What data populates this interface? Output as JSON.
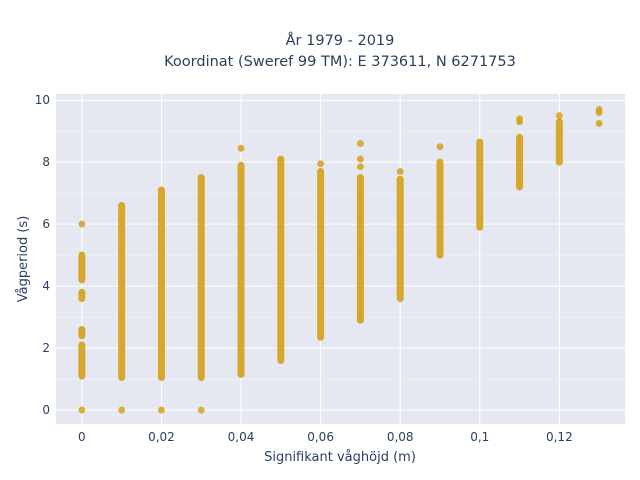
{
  "chart_data": {
    "type": "scatter",
    "title_line1": "År 1979 - 2019",
    "title_line2": "Koordinat (Sweref 99 TM): E 373611, N 6271753",
    "xlabel": "Signifikant våghöjd (m)",
    "ylabel": "Vågperiod (s)",
    "xlim": [
      -0.0065,
      0.1365
    ],
    "ylim": [
      -0.45,
      10.2
    ],
    "grid": true,
    "legend": "none",
    "marker_color": "#d4a017",
    "plot_bg": "#e5e8f0",
    "xticks": [
      0,
      0.02,
      0.04,
      0.06,
      0.08,
      0.1,
      0.12
    ],
    "xtick_labels": [
      "0",
      "0,02",
      "0,04",
      "0,06",
      "0,08",
      "0,1",
      "0,12"
    ],
    "yticks": [
      0,
      2,
      4,
      6,
      8,
      10
    ],
    "ytick_labels": [
      "0",
      "2",
      "4",
      "6",
      "8",
      "10"
    ],
    "columns": [
      {
        "x": 0,
        "ranges": [
          [
            1.1,
            2.1
          ],
          [
            2.4,
            2.6
          ],
          [
            3.6,
            3.8
          ],
          [
            4.2,
            5.0
          ]
        ],
        "points": [
          0,
          6.0
        ]
      },
      {
        "x": 0.01,
        "ranges": [
          [
            1.05,
            6.6
          ]
        ],
        "points": [
          0
        ]
      },
      {
        "x": 0.02,
        "ranges": [
          [
            1.05,
            7.1
          ]
        ],
        "points": [
          0
        ]
      },
      {
        "x": 0.03,
        "ranges": [
          [
            1.05,
            7.5
          ]
        ],
        "points": [
          0
        ]
      },
      {
        "x": 0.04,
        "ranges": [
          [
            1.15,
            7.9
          ]
        ],
        "points": [
          8.45
        ]
      },
      {
        "x": 0.05,
        "ranges": [
          [
            1.6,
            8.1
          ]
        ],
        "points": []
      },
      {
        "x": 0.06,
        "ranges": [
          [
            2.35,
            7.7
          ]
        ],
        "points": [
          7.95
        ]
      },
      {
        "x": 0.07,
        "ranges": [
          [
            2.9,
            7.5
          ]
        ],
        "points": [
          7.85,
          8.1,
          8.6
        ]
      },
      {
        "x": 0.08,
        "ranges": [
          [
            3.6,
            7.45
          ]
        ],
        "points": [
          7.7
        ]
      },
      {
        "x": 0.09,
        "ranges": [
          [
            5.0,
            8.0
          ]
        ],
        "points": [
          8.5
        ]
      },
      {
        "x": 0.1,
        "ranges": [
          [
            5.9,
            8.65
          ]
        ],
        "points": []
      },
      {
        "x": 0.11,
        "ranges": [
          [
            7.2,
            8.8
          ]
        ],
        "points": [
          9.3,
          9.4
        ]
      },
      {
        "x": 0.12,
        "ranges": [
          [
            8.0,
            9.3
          ]
        ],
        "points": [
          9.5
        ]
      },
      {
        "x": 0.13,
        "ranges": [],
        "points": [
          9.25,
          9.6,
          9.7
        ]
      }
    ]
  }
}
